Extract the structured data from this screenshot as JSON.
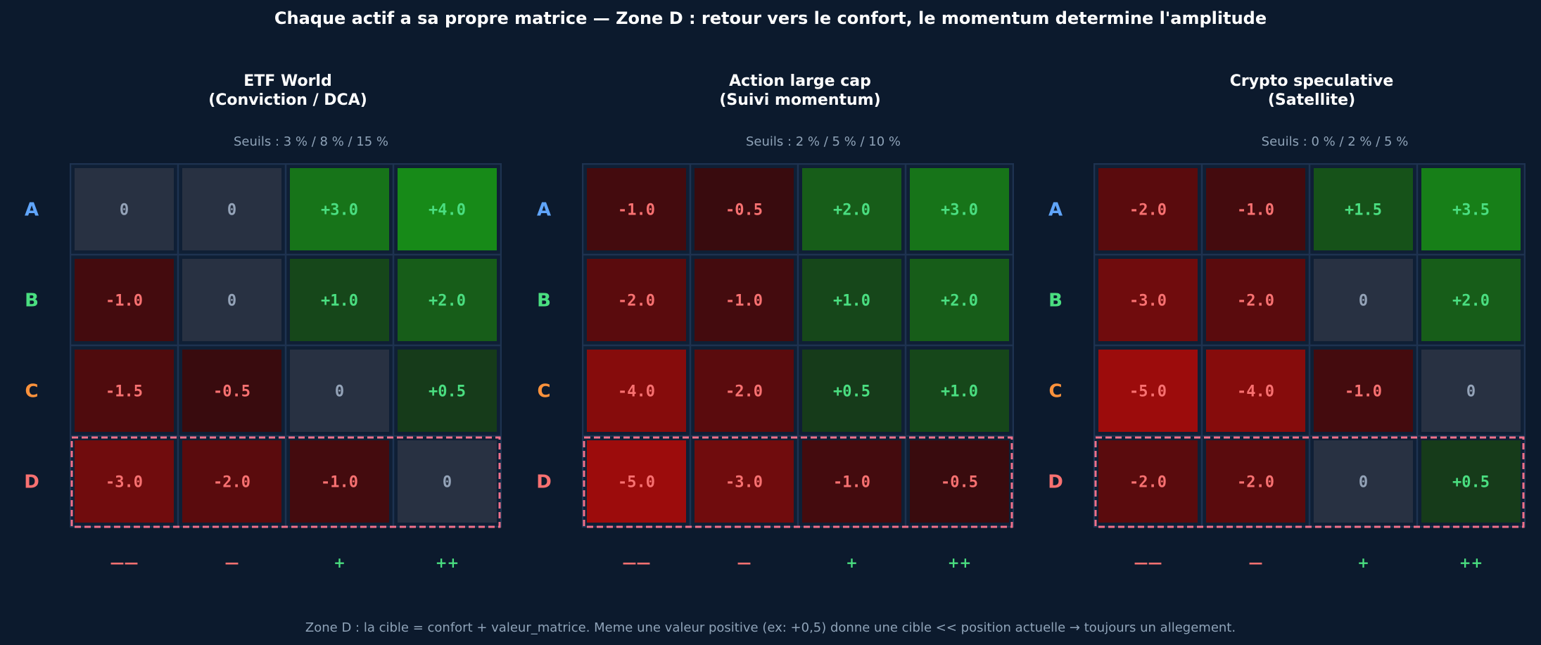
{
  "title": "Chaque actif a sa propre matrice — Zone D : retour vers le confort, le momentum determine l'amplitude",
  "footnote": "Zone D : la cible = confort + valeur_matrice. Meme une valeur positive (ex: +0,5) donne une cible << position actuelle → toujours un allegement.",
  "colors": {
    "background": "#0c1a2d",
    "row_A": "#60a5fa",
    "row_B": "#4ade80",
    "row_C": "#fb923c",
    "row_D": "#f87171",
    "negative_text": "#f87171",
    "positive_text": "#4ade80",
    "zero_text": "#94a3b8",
    "zone_d_border": "#f0708a"
  },
  "chart_data": [
    {
      "type": "heatmap",
      "title": "ETF World\n(Conviction / DCA)",
      "subtitle": "Seuils : 3 % / 8 % / 15 %",
      "rows": [
        "A",
        "B",
        "C",
        "D"
      ],
      "columns": [
        "——",
        "—",
        "+",
        "++"
      ],
      "values": [
        [
          0,
          0,
          3.0,
          4.0
        ],
        [
          -1.0,
          0,
          1.0,
          2.0
        ],
        [
          -1.5,
          -0.5,
          0,
          0.5
        ],
        [
          -3.0,
          -2.0,
          -1.0,
          0
        ]
      ],
      "highlight_row": "D"
    },
    {
      "type": "heatmap",
      "title": "Action large cap\n(Suivi momentum)",
      "subtitle": "Seuils : 2 % / 5 % / 10 %",
      "rows": [
        "A",
        "B",
        "C",
        "D"
      ],
      "columns": [
        "——",
        "—",
        "+",
        "++"
      ],
      "values": [
        [
          -1.0,
          -0.5,
          2.0,
          3.0
        ],
        [
          -2.0,
          -1.0,
          1.0,
          2.0
        ],
        [
          -4.0,
          -2.0,
          0.5,
          1.0
        ],
        [
          -5.0,
          -3.0,
          -1.0,
          -0.5
        ]
      ],
      "highlight_row": "D"
    },
    {
      "type": "heatmap",
      "title": "Crypto speculative\n(Satellite)",
      "subtitle": "Seuils : 0 % / 2 % / 5 %",
      "rows": [
        "A",
        "B",
        "C",
        "D"
      ],
      "columns": [
        "——",
        "—",
        "+",
        "++"
      ],
      "values": [
        [
          -2.0,
          -1.0,
          1.5,
          3.5
        ],
        [
          -3.0,
          -2.0,
          0,
          2.0
        ],
        [
          -5.0,
          -4.0,
          -1.0,
          0
        ],
        [
          -2.0,
          -2.0,
          0,
          0.5
        ]
      ],
      "highlight_row": "D"
    }
  ]
}
